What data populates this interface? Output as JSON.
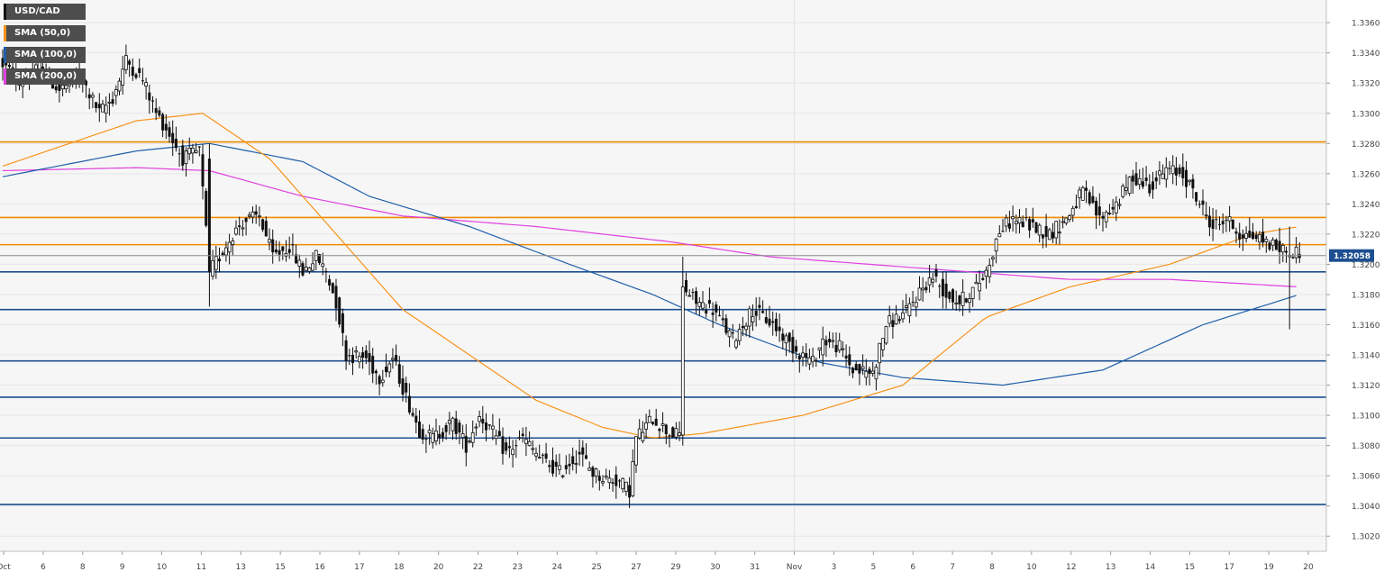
{
  "chart_data": {
    "type": "candlestick",
    "symbol": "USD/CAD",
    "last_price": "1.32058",
    "ylim": [
      1.301,
      1.3375
    ],
    "yticks": [
      "1.3020",
      "1.3040",
      "1.3060",
      "1.3080",
      "1.3100",
      "1.3120",
      "1.3140",
      "1.3160",
      "1.3180",
      "1.3200",
      "1.3220",
      "1.3240",
      "1.3260",
      "1.3280",
      "1.3300",
      "1.3320",
      "1.3340",
      "1.3360"
    ],
    "xticks": [
      "Oct",
      "6",
      "8",
      "9",
      "10",
      "11",
      "13",
      "15",
      "16",
      "17",
      "18",
      "20",
      "22",
      "23",
      "24",
      "25",
      "27",
      "29",
      "30",
      "31",
      "Nov",
      "3",
      "5",
      "6",
      "7",
      "8",
      "10",
      "12",
      "13",
      "14",
      "15",
      "17",
      "19",
      "20"
    ],
    "grid": true,
    "legend_position": "top-left",
    "legend": [
      {
        "label": "USD/CAD",
        "color": "#222222"
      },
      {
        "label": "SMA (50,0)",
        "color": "#f7931a"
      },
      {
        "label": "SMA (100,0)",
        "color": "#1f5fa8"
      },
      {
        "label": "SMA (200,0)",
        "color": "#e040e0"
      }
    ],
    "horizontal_levels": [
      {
        "value": 1.3281,
        "color": "#f08c00"
      },
      {
        "value": 1.3231,
        "color": "#f08c00"
      },
      {
        "value": 1.3213,
        "color": "#f08c00"
      },
      {
        "value": 1.3195,
        "color": "#1d4f91"
      },
      {
        "value": 1.317,
        "color": "#1d4f91"
      },
      {
        "value": 1.3136,
        "color": "#1d4f91"
      },
      {
        "value": 1.3112,
        "color": "#1d4f91"
      },
      {
        "value": 1.3085,
        "color": "#1d4f91"
      },
      {
        "value": 1.3041,
        "color": "#1d4f91"
      }
    ],
    "price_path": [
      [
        0,
        1.3335
      ],
      [
        6,
        1.332
      ],
      [
        12,
        1.333
      ],
      [
        18,
        1.3315
      ],
      [
        24,
        1.3325
      ],
      [
        30,
        1.33
      ],
      [
        34,
        1.331
      ],
      [
        38,
        1.3335
      ],
      [
        43,
        1.3322
      ],
      [
        47,
        1.33
      ],
      [
        50,
        1.329
      ],
      [
        55,
        1.327
      ],
      [
        60,
        1.3275
      ],
      [
        63,
        1.3195
      ],
      [
        66,
        1.3205
      ],
      [
        70,
        1.322
      ],
      [
        73,
        1.3228
      ],
      [
        78,
        1.3232
      ],
      [
        82,
        1.3205
      ],
      [
        87,
        1.3212
      ],
      [
        91,
        1.3195
      ],
      [
        95,
        1.3205
      ],
      [
        98,
        1.3195
      ],
      [
        101,
        1.3175
      ],
      [
        104,
        1.314
      ],
      [
        110,
        1.3138
      ],
      [
        114,
        1.3125
      ],
      [
        118,
        1.3138
      ],
      [
        122,
        1.3112
      ],
      [
        126,
        1.309
      ],
      [
        130,
        1.3085
      ],
      [
        136,
        1.3095
      ],
      [
        140,
        1.308
      ],
      [
        144,
        1.31
      ],
      [
        148,
        1.3088
      ],
      [
        152,
        1.3075
      ],
      [
        157,
        1.3085
      ],
      [
        162,
        1.3072
      ],
      [
        168,
        1.3062
      ],
      [
        174,
        1.3075
      ],
      [
        178,
        1.3062
      ],
      [
        182,
        1.3058
      ],
      [
        186,
        1.3056
      ],
      [
        189,
        1.305
      ],
      [
        191,
        1.3085
      ],
      [
        196,
        1.3098
      ],
      [
        201,
        1.3088
      ],
      [
        204,
        1.3087
      ],
      [
        205,
        1.3185
      ],
      [
        209,
        1.3175
      ],
      [
        214,
        1.317
      ],
      [
        220,
        1.315
      ],
      [
        226,
        1.317
      ],
      [
        232,
        1.316
      ],
      [
        238,
        1.3145
      ],
      [
        244,
        1.3135
      ],
      [
        247,
        1.315
      ],
      [
        252,
        1.3145
      ],
      [
        256,
        1.313
      ],
      [
        262,
        1.3128
      ],
      [
        266,
        1.316
      ],
      [
        272,
        1.3168
      ],
      [
        276,
        1.3182
      ],
      [
        280,
        1.3192
      ],
      [
        284,
        1.318
      ],
      [
        288,
        1.3175
      ],
      [
        293,
        1.3185
      ],
      [
        296,
        1.3195
      ],
      [
        300,
        1.3222
      ],
      [
        304,
        1.323
      ],
      [
        310,
        1.3225
      ],
      [
        315,
        1.322
      ],
      [
        320,
        1.323
      ],
      [
        325,
        1.3248
      ],
      [
        330,
        1.323
      ],
      [
        335,
        1.324
      ],
      [
        340,
        1.3258
      ],
      [
        345,
        1.3252
      ],
      [
        350,
        1.3262
      ],
      [
        355,
        1.326
      ],
      [
        360,
        1.324
      ],
      [
        364,
        1.3225
      ],
      [
        368,
        1.323
      ],
      [
        372,
        1.322
      ],
      [
        377,
        1.3218
      ],
      [
        380,
        1.3215
      ],
      [
        384,
        1.321
      ],
      [
        388,
        1.3208
      ]
    ],
    "special_bars": [
      {
        "i": 62,
        "o": 1.327,
        "h": 1.328,
        "l": 1.3172,
        "c": 1.3195
      },
      {
        "i": 204,
        "o": 1.3087,
        "h": 1.3205,
        "l": 1.308,
        "c": 1.3185
      },
      {
        "i": 386,
        "o": 1.3205,
        "h": 1.3225,
        "l": 1.3157,
        "c": 1.3206
      }
    ],
    "sma_50": [
      [
        0,
        1.3265
      ],
      [
        40,
        1.3295
      ],
      [
        60,
        1.33
      ],
      [
        80,
        1.327
      ],
      [
        100,
        1.322
      ],
      [
        120,
        1.317
      ],
      [
        140,
        1.314
      ],
      [
        160,
        1.311
      ],
      [
        180,
        1.3092
      ],
      [
        195,
        1.3085
      ],
      [
        210,
        1.3088
      ],
      [
        240,
        1.31
      ],
      [
        270,
        1.312
      ],
      [
        295,
        1.3165
      ],
      [
        320,
        1.3185
      ],
      [
        350,
        1.32
      ],
      [
        375,
        1.322
      ],
      [
        389,
        1.3225
      ]
    ],
    "sma_100": [
      [
        0,
        1.3258
      ],
      [
        40,
        1.3275
      ],
      [
        62,
        1.328
      ],
      [
        90,
        1.3268
      ],
      [
        110,
        1.3245
      ],
      [
        140,
        1.3225
      ],
      [
        170,
        1.32
      ],
      [
        195,
        1.318
      ],
      [
        215,
        1.316
      ],
      [
        245,
        1.3135
      ],
      [
        270,
        1.3125
      ],
      [
        300,
        1.312
      ],
      [
        330,
        1.313
      ],
      [
        360,
        1.316
      ],
      [
        389,
        1.318
      ]
    ],
    "sma_200": [
      [
        0,
        1.3262
      ],
      [
        40,
        1.3264
      ],
      [
        62,
        1.3262
      ],
      [
        90,
        1.3245
      ],
      [
        120,
        1.3232
      ],
      [
        160,
        1.3225
      ],
      [
        200,
        1.3215
      ],
      [
        230,
        1.3205
      ],
      [
        260,
        1.32
      ],
      [
        290,
        1.3195
      ],
      [
        320,
        1.319
      ],
      [
        350,
        1.319
      ],
      [
        389,
        1.3185
      ]
    ]
  }
}
